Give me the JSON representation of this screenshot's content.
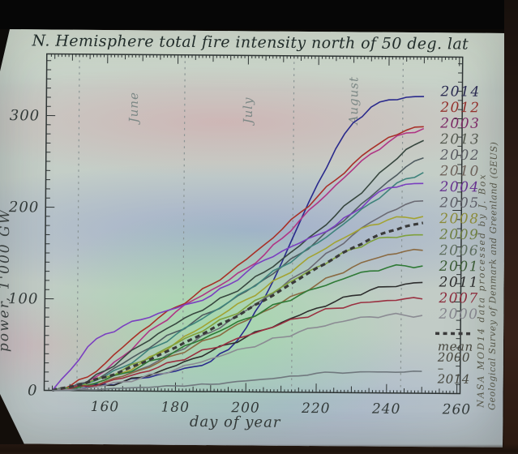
{
  "photo": {
    "type": "photograph of projected slide",
    "surround_top_color": "#060606",
    "surround_bottom_color": "#241710",
    "slide_base_color": "#c5cfc7"
  },
  "title": "N. Hemisphere total fire intensity north of 50 deg. lat",
  "credits": {
    "line1": "NASA MOD14 data processed by J. Box",
    "line2": "Geological Survey of Denmark and Greenland (GEUS)"
  },
  "legend": {
    "style": "dashed-sample",
    "lines": [
      "mean",
      "2000",
      "–",
      "2014"
    ],
    "position": "bottom-right"
  },
  "chart_data": {
    "type": "line",
    "title": "N. Hemisphere total fire intensity north of 50 deg. lat",
    "xlabel": "day of year",
    "ylabel": "power, 1'000 GW",
    "xlim": [
      142.7,
      260.9
    ],
    "ylim": [
      0,
      367
    ],
    "x_ticks": [
      160,
      180,
      200,
      220,
      240,
      260
    ],
    "y_ticks": [
      0,
      100,
      200,
      300
    ],
    "grid": "month boundary dashed verticals",
    "month_boundaries": [
      152,
      182,
      213,
      244
    ],
    "months": [
      {
        "label": "June",
        "day": 167.5
      },
      {
        "label": "July",
        "day": 200
      },
      {
        "label": "August",
        "day": 230
      }
    ],
    "x": [
      145,
      150,
      155,
      160,
      165,
      170,
      175,
      180,
      185,
      190,
      195,
      200,
      205,
      210,
      215,
      220,
      225,
      230,
      235,
      240,
      245,
      250
    ],
    "series": [
      {
        "name": "2014",
        "color": "#2a2a8c",
        "label_color": "#28284f",
        "values": [
          0,
          2,
          4,
          7,
          10,
          14,
          18,
          22,
          27,
          33,
          46,
          70,
          102,
          142,
          186,
          228,
          266,
          295,
          312,
          320,
          323,
          324
        ]
      },
      {
        "name": "2012",
        "color": "#a83028",
        "label_color": "#93312c",
        "values": [
          0,
          5,
          15,
          30,
          48,
          65,
          80,
          92,
          104,
          117,
          130,
          145,
          161,
          178,
          196,
          214,
          232,
          250,
          266,
          279,
          287,
          291
        ]
      },
      {
        "name": "2003",
        "color": "#b03585",
        "label_color": "#7c2a66",
        "values": [
          0,
          3,
          10,
          22,
          38,
          56,
          72,
          87,
          100,
          111,
          122,
          135,
          150,
          168,
          188,
          207,
          226,
          244,
          261,
          274,
          284,
          289
        ]
      },
      {
        "name": "2013",
        "color": "#37473f",
        "label_color": "#565b51",
        "values": [
          0,
          3,
          10,
          22,
          36,
          50,
          63,
          74,
          85,
          95,
          106,
          118,
          131,
          145,
          160,
          176,
          193,
          211,
          229,
          248,
          266,
          276
        ]
      },
      {
        "name": "2002",
        "color": "#4f5c60",
        "label_color": "#5a5c62",
        "values": [
          0,
          3,
          9,
          18,
          30,
          42,
          54,
          65,
          76,
          87,
          98,
          110,
          123,
          137,
          151,
          166,
          181,
          197,
          214,
          231,
          247,
          257
        ]
      },
      {
        "name": "2010",
        "color": "#3f837c",
        "label_color": "#6d625a",
        "values": [
          0,
          3,
          8,
          16,
          26,
          38,
          50,
          62,
          74,
          86,
          98,
          111,
          124,
          137,
          150,
          163,
          177,
          192,
          207,
          221,
          234,
          241
        ]
      },
      {
        "name": "2004",
        "color": "#7a3fc0",
        "label_color": "#66318f",
        "values": [
          0,
          22,
          48,
          62,
          71,
          78,
          85,
          91,
          97,
          105,
          117,
          131,
          144,
          154,
          163,
          172,
          182,
          196,
          212,
          224,
          228,
          229
        ]
      },
      {
        "name": "2005",
        "color": "#6b6b74",
        "label_color": "#5d5d66",
        "values": [
          0,
          2,
          5,
          10,
          16,
          24,
          33,
          43,
          54,
          65,
          77,
          89,
          102,
          115,
          129,
          143,
          157,
          172,
          186,
          197,
          206,
          210
        ]
      },
      {
        "name": "2008",
        "color": "#a3a332",
        "label_color": "#8b8b3a",
        "values": [
          0,
          2,
          6,
          12,
          20,
          30,
          41,
          53,
          65,
          77,
          89,
          101,
          113,
          126,
          139,
          152,
          164,
          174,
          183,
          189,
          192,
          193
        ]
      },
      {
        "name": "2009",
        "color": "#7fa03c",
        "label_color": "#6f7f43",
        "values": [
          0,
          3,
          8,
          15,
          23,
          32,
          42,
          52,
          62,
          72,
          82,
          93,
          104,
          115,
          126,
          137,
          147,
          157,
          165,
          170,
          172,
          173
        ]
      },
      {
        "name": "2006",
        "color": "#8a6a42",
        "label_color": "#5e6e5e",
        "values": [
          0,
          2,
          5,
          10,
          16,
          23,
          31,
          40,
          49,
          58,
          68,
          78,
          88,
          98,
          108,
          118,
          128,
          137,
          145,
          151,
          155,
          156
        ]
      },
      {
        "name": "2001",
        "color": "#2f7a36",
        "label_color": "#3c5c36",
        "values": [
          0,
          2,
          6,
          12,
          19,
          27,
          35,
          44,
          53,
          62,
          71,
          80,
          89,
          98,
          106,
          114,
          121,
          128,
          133,
          137,
          139,
          139
        ]
      },
      {
        "name": "2011",
        "color": "#2d2d2d",
        "label_color": "#2d2d2d",
        "values": [
          0,
          1,
          3,
          6,
          10,
          15,
          21,
          28,
          36,
          44,
          52,
          60,
          68,
          76,
          84,
          92,
          99,
          106,
          112,
          116,
          119,
          121
        ]
      },
      {
        "name": "2007",
        "color": "#9a3040",
        "label_color": "#8c2c3c",
        "values": [
          0,
          2,
          5,
          9,
          14,
          20,
          26,
          33,
          40,
          47,
          54,
          61,
          68,
          75,
          81,
          87,
          92,
          96,
          99,
          101,
          103,
          103
        ]
      },
      {
        "name": "2000",
        "color": "#8b8b93",
        "label_color": "#85858d",
        "values": [
          0,
          1,
          3,
          6,
          10,
          14,
          19,
          24,
          30,
          36,
          42,
          48,
          54,
          60,
          66,
          71,
          76,
          80,
          83,
          85,
          85,
          85
        ]
      },
      {
        "name": "mean 2000 - 2014",
        "style": "dashed",
        "color": "#3a3a3a",
        "label_color": "#45453c",
        "right_label": false,
        "values": [
          0,
          4,
          9,
          15,
          22,
          30,
          39,
          48,
          58,
          68,
          78,
          89,
          100,
          112,
          124,
          136,
          147,
          158,
          168,
          176,
          182,
          186
        ]
      },
      {
        "name": "",
        "note": "unlabeled low flat curve",
        "color": "#70787e",
        "right_label": false,
        "values": [
          0,
          0,
          1,
          2,
          3,
          4,
          5,
          6,
          7,
          8,
          10,
          12,
          14,
          16,
          18,
          21,
          22,
          22,
          23,
          23,
          23,
          24
        ]
      }
    ],
    "legend_position": "right-of-plot year labels, stacked top to bottom"
  }
}
